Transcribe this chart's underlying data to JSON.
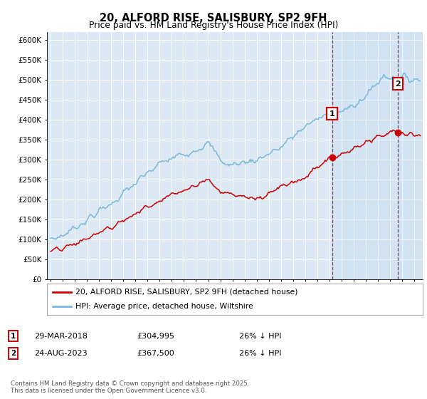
{
  "title": "20, ALFORD RISE, SALISBURY, SP2 9FH",
  "subtitle": "Price paid vs. HM Land Registry's House Price Index (HPI)",
  "ylim": [
    0,
    620000
  ],
  "yticks": [
    0,
    50000,
    100000,
    150000,
    200000,
    250000,
    300000,
    350000,
    400000,
    450000,
    500000,
    550000,
    600000
  ],
  "ytick_labels": [
    "£0",
    "£50K",
    "£100K",
    "£150K",
    "£200K",
    "£250K",
    "£300K",
    "£350K",
    "£400K",
    "£450K",
    "£500K",
    "£550K",
    "£600K"
  ],
  "xlim_start": 1994.7,
  "xlim_end": 2025.7,
  "hpi_color": "#7ab8d9",
  "price_color": "#cc0000",
  "background_color": "#dce9f5",
  "sale1_year": 2018.22,
  "sale1_price": 304995,
  "sale1_hpi": 415000,
  "sale2_year": 2023.64,
  "sale2_price": 367500,
  "sale2_hpi": 490000,
  "legend_line1": "20, ALFORD RISE, SALISBURY, SP2 9FH (detached house)",
  "legend_line2": "HPI: Average price, detached house, Wiltshire",
  "annotation1_date": "29-MAR-2018",
  "annotation1_price": "£304,995",
  "annotation1_hpi": "26% ↓ HPI",
  "annotation2_date": "24-AUG-2023",
  "annotation2_price": "£367,500",
  "annotation2_hpi": "26% ↓ HPI",
  "copyright_text": "Contains HM Land Registry data © Crown copyright and database right 2025.\nThis data is licensed under the Open Government Licence v3.0."
}
